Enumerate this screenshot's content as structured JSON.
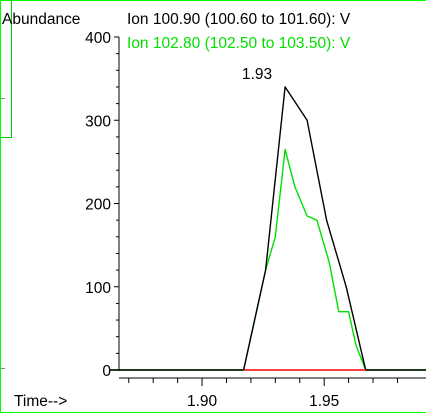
{
  "colors": {
    "frame": "#00ff00",
    "axis": "#000000",
    "series_1": "#000000",
    "series_2": "#00e000",
    "baseline": "#ff0000"
  },
  "chart_data": {
    "type": "line",
    "title": "",
    "ylabel": "Abundance",
    "xlabel": "Time-->",
    "xlim": [
      1.866,
      1.988
    ],
    "ylim": [
      0,
      400
    ],
    "x_ticks": [
      "1.90",
      "1.95"
    ],
    "y_ticks": [
      "0",
      "100",
      "200",
      "300",
      "400"
    ],
    "grid": false,
    "legend": [
      "Ion 100.90 (100.60 to 101.60): V",
      "Ion 102.80 (102.50 to 103.50): V"
    ],
    "peak_label": {
      "text": "1.93",
      "x": 1.934,
      "y": 385
    },
    "series": [
      {
        "name": "Ion 100.90 (100.60 to 101.60): V",
        "x": [
          1.862,
          1.917,
          1.926,
          1.934,
          1.943,
          1.951,
          1.959,
          1.967,
          2.0
        ],
        "y": [
          0,
          0,
          120,
          340,
          300,
          180,
          100,
          0,
          0
        ]
      },
      {
        "name": "Ion 102.80 (102.50 to 103.50): V",
        "x": [
          1.862,
          1.917,
          1.926,
          1.93,
          1.934,
          1.938,
          1.943,
          1.947,
          1.952,
          1.956,
          1.96,
          1.963,
          1.967,
          2.0
        ],
        "y": [
          0,
          0,
          120,
          160,
          265,
          220,
          185,
          180,
          130,
          70,
          70,
          30,
          0,
          0
        ]
      },
      {
        "name": "",
        "x": [
          1.917,
          1.967
        ],
        "y": [
          0,
          0
        ]
      }
    ]
  }
}
